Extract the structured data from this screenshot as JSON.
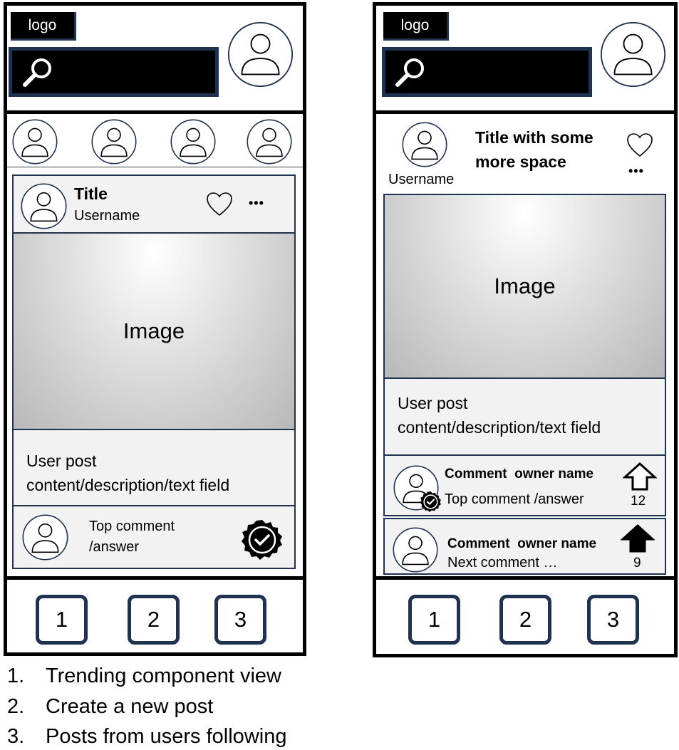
{
  "left": {
    "logo": "logo",
    "post": {
      "title": "Title",
      "username": "Username",
      "image_label": "Image",
      "content_line1": "User post",
      "content_line2": "content/description/text field",
      "top_comment_line1": "Top comment",
      "top_comment_line2": "/answer",
      "more": "•••"
    },
    "nav": [
      "1",
      "2",
      "3"
    ]
  },
  "right": {
    "logo": "logo",
    "post": {
      "title_line1": "Title with some",
      "title_line2": "more space",
      "username": "Username",
      "image_label": "Image",
      "content_line1": "User post",
      "content_line2": "content/description/text field",
      "more": "•••"
    },
    "comments": [
      {
        "owner": "Comment  owner name",
        "text": "Top comment /answer",
        "votes": "12"
      },
      {
        "owner": "Comment  owner name",
        "text": "Next comment …",
        "votes": "9"
      }
    ],
    "nav": [
      "1",
      "2",
      "3"
    ]
  },
  "legend": [
    {
      "num": "1.",
      "text": "Trending component view"
    },
    {
      "num": "2.",
      "text": "Create a new post"
    },
    {
      "num": "3.",
      "text": "Posts from users following"
    }
  ]
}
